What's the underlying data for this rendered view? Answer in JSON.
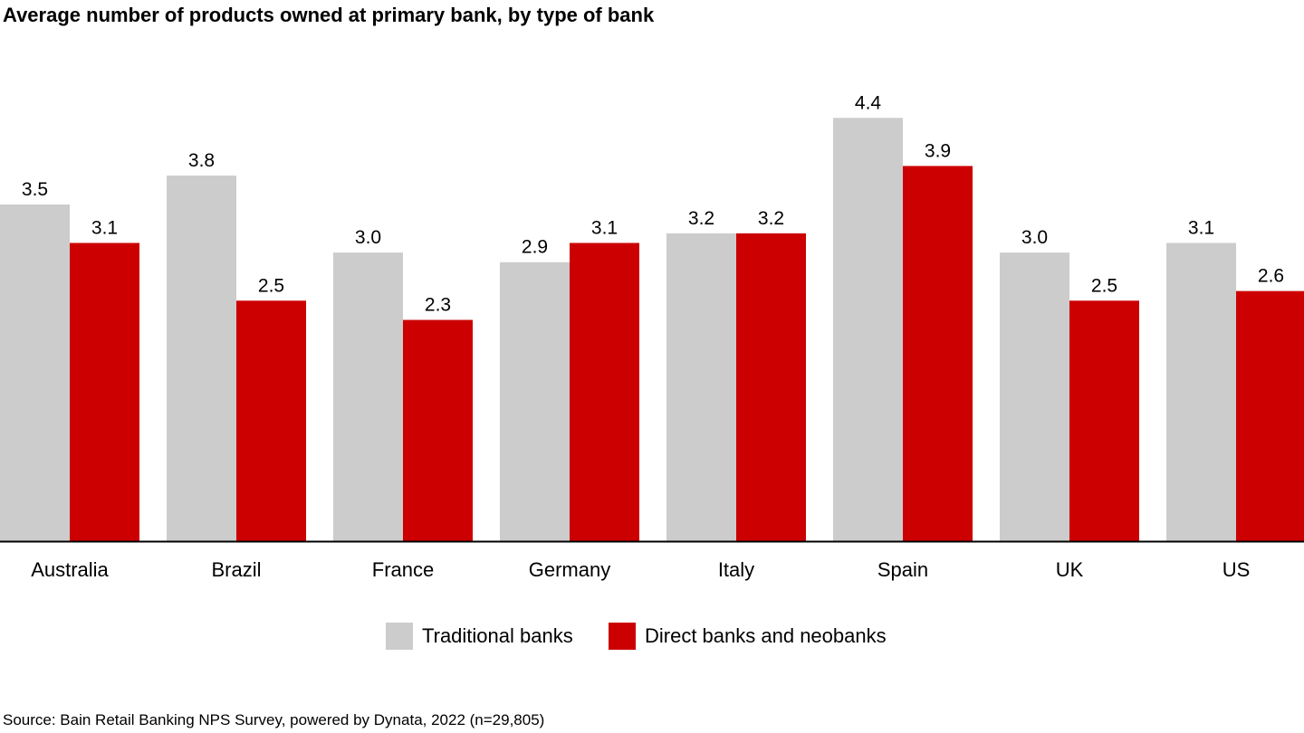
{
  "chart_data": {
    "type": "bar",
    "title": "Average number of products owned at primary bank, by type of bank",
    "categories": [
      "Australia",
      "Brazil",
      "France",
      "Germany",
      "Italy",
      "Spain",
      "UK",
      "US"
    ],
    "series": [
      {
        "name": "Traditional banks",
        "color": "#cccccc",
        "values": [
          3.5,
          3.8,
          3.0,
          2.9,
          3.2,
          4.4,
          3.0,
          3.1
        ]
      },
      {
        "name": "Direct banks and neobanks",
        "color": "#cc0000",
        "values": [
          3.1,
          2.5,
          2.3,
          3.1,
          3.2,
          3.9,
          2.5,
          2.6
        ]
      }
    ],
    "ylim": [
      0,
      4.4
    ],
    "xlabel": "",
    "ylabel": "",
    "grid": false,
    "legend_position": "bottom-center",
    "source": "Source: Bain Retail Banking NPS Survey, powered by Dynata, 2022 (n=29,805)"
  }
}
